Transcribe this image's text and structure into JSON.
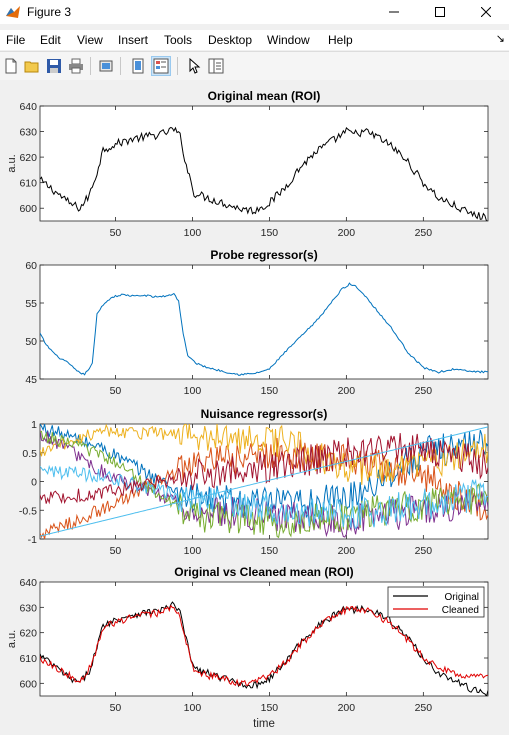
{
  "window": {
    "title": "Figure 3",
    "icon": "matlab-figure-icon",
    "controls": [
      "minimize-icon",
      "maximize-icon",
      "close-icon"
    ]
  },
  "menu": {
    "items": [
      "File",
      "Edit",
      "View",
      "Insert",
      "Tools",
      "Desktop",
      "Window",
      "Help"
    ]
  },
  "toolbar": {
    "buttons": [
      "new-figure-icon",
      "open-file-icon",
      "save-icon",
      "print-icon",
      "link-plot-icon",
      "hide-plot-tools-icon",
      "show-plot-tools-icon",
      "edit-plot-icon",
      "open-property-inspector-icon"
    ]
  },
  "chart_data": [
    {
      "type": "line",
      "title": "Original mean (ROI)",
      "ylabel": "a.u.",
      "xlabel": "",
      "xlim": [
        1,
        292
      ],
      "ylim": [
        595,
        640
      ],
      "yticks": [
        600,
        610,
        620,
        630,
        640
      ],
      "xticks": [
        50,
        100,
        150,
        200,
        250
      ],
      "series": [
        {
          "color": "#000000",
          "anchors": [
            [
              1,
              611
            ],
            [
              10,
              607
            ],
            [
              20,
              602
            ],
            [
              27,
              600
            ],
            [
              33,
              605
            ],
            [
              38,
              614
            ],
            [
              42,
              623
            ],
            [
              50,
              625
            ],
            [
              60,
              627
            ],
            [
              70,
              628
            ],
            [
              80,
              629
            ],
            [
              88,
              631
            ],
            [
              92,
              628
            ],
            [
              96,
              617
            ],
            [
              101,
              606
            ],
            [
              110,
              604
            ],
            [
              120,
              602
            ],
            [
              130,
              600
            ],
            [
              140,
              599
            ],
            [
              150,
              602
            ],
            [
              160,
              608
            ],
            [
              170,
              616
            ],
            [
              180,
              622
            ],
            [
              190,
              626
            ],
            [
              200,
              630
            ],
            [
              205,
              629
            ],
            [
              212,
              630
            ],
            [
              220,
              628
            ],
            [
              230,
              624
            ],
            [
              240,
              618
            ],
            [
              250,
              610
            ],
            [
              260,
              604
            ],
            [
              270,
              601
            ],
            [
              280,
              598
            ],
            [
              292,
              596
            ]
          ]
        }
      ]
    },
    {
      "type": "line",
      "title": "Probe regressor(s)",
      "ylabel": "",
      "xlabel": "",
      "xlim": [
        1,
        292
      ],
      "ylim": [
        45,
        60
      ],
      "yticks": [
        45,
        50,
        55,
        60
      ],
      "xticks": [
        50,
        100,
        150,
        200,
        250
      ],
      "series": [
        {
          "color": "#0072bd",
          "anchors": [
            [
              1,
              51
            ],
            [
              5,
              49.5
            ],
            [
              12,
              48
            ],
            [
              20,
              47
            ],
            [
              25,
              46
            ],
            [
              30,
              45.6
            ],
            [
              35,
              47
            ],
            [
              38,
              53.5
            ],
            [
              42,
              54.8
            ],
            [
              48,
              55.8
            ],
            [
              55,
              56.1
            ],
            [
              62,
              55.9
            ],
            [
              70,
              56
            ],
            [
              75,
              55.8
            ],
            [
              82,
              55.9
            ],
            [
              88,
              56.2
            ],
            [
              91,
              55.3
            ],
            [
              94,
              51
            ],
            [
              97,
              48
            ],
            [
              103,
              47
            ],
            [
              110,
              46.5
            ],
            [
              120,
              46
            ],
            [
              130,
              45.6
            ],
            [
              140,
              45.7
            ],
            [
              150,
              46.3
            ],
            [
              160,
              48.5
            ],
            [
              170,
              50.5
            ],
            [
              180,
              52.5
            ],
            [
              190,
              55
            ],
            [
              197,
              56.8
            ],
            [
              202,
              57.5
            ],
            [
              206,
              57.2
            ],
            [
              212,
              56
            ],
            [
              220,
              54
            ],
            [
              230,
              51.5
            ],
            [
              240,
              48.5
            ],
            [
              250,
              46.5
            ],
            [
              260,
              45.9
            ],
            [
              270,
              46.3
            ],
            [
              280,
              46
            ],
            [
              292,
              45.9
            ]
          ]
        }
      ]
    },
    {
      "type": "line",
      "title": "Nuisance regressor(s)",
      "ylabel": "",
      "xlabel": "",
      "xlim": [
        1,
        292
      ],
      "ylim": [
        -1,
        1
      ],
      "yticks": [
        -1,
        -0.5,
        0,
        0.5,
        1
      ],
      "xticks": [
        50,
        100,
        150,
        200,
        250
      ],
      "series": [
        {
          "color": "#0072bd",
          "anchors": [
            [
              1,
              0.95
            ],
            [
              40,
              0.6
            ],
            [
              100,
              -0.3
            ],
            [
              160,
              -0.4
            ],
            [
              200,
              -0.3
            ],
            [
              250,
              0.5
            ],
            [
              292,
              0.7
            ]
          ]
        },
        {
          "color": "#d95319",
          "anchors": [
            [
              1,
              -0.95
            ],
            [
              40,
              -0.5
            ],
            [
              100,
              0.3
            ],
            [
              160,
              0.5
            ],
            [
              200,
              0.4
            ],
            [
              250,
              0.1
            ],
            [
              292,
              -0.5
            ]
          ]
        },
        {
          "color": "#edb120",
          "anchors": [
            [
              1,
              0.5
            ],
            [
              40,
              0.9
            ],
            [
              100,
              0.8
            ],
            [
              160,
              0.7
            ],
            [
              200,
              0.2
            ],
            [
              250,
              0.3
            ],
            [
              292,
              0.6
            ]
          ]
        },
        {
          "color": "#7e2f8e",
          "anchors": [
            [
              1,
              0.85
            ],
            [
              40,
              0.2
            ],
            [
              100,
              -0.5
            ],
            [
              160,
              -0.6
            ],
            [
              200,
              -0.7
            ],
            [
              250,
              -0.5
            ],
            [
              292,
              -0.4
            ]
          ]
        },
        {
          "color": "#77ac30",
          "anchors": [
            [
              1,
              0.8
            ],
            [
              40,
              0.5
            ],
            [
              100,
              -0.6
            ],
            [
              160,
              -0.7
            ],
            [
              200,
              -0.6
            ],
            [
              250,
              -0.4
            ],
            [
              292,
              -0.3
            ]
          ]
        },
        {
          "color": "#4dbeee",
          "anchors": [
            [
              1,
              0.2
            ],
            [
              40,
              0.1
            ],
            [
              100,
              -0.3
            ],
            [
              160,
              -0.5
            ],
            [
              200,
              -0.6
            ],
            [
              250,
              -0.4
            ],
            [
              292,
              -0.2
            ]
          ]
        },
        {
          "color": "#a2142f",
          "anchors": [
            [
              1,
              -0.3
            ],
            [
              40,
              -0.2
            ],
            [
              100,
              0.1
            ],
            [
              160,
              0.3
            ],
            [
              200,
              0.5
            ],
            [
              250,
              0.6
            ],
            [
              292,
              0.3
            ]
          ]
        },
        {
          "color": "#4dbeee",
          "anchors": [
            [
              1,
              -0.95
            ],
            [
              292,
              0.95
            ]
          ]
        }
      ]
    },
    {
      "type": "line",
      "title": "Original vs Cleaned mean (ROI)",
      "ylabel": "a.u.",
      "xlabel": "time",
      "xlim": [
        1,
        292
      ],
      "ylim": [
        595,
        640
      ],
      "yticks": [
        600,
        610,
        620,
        630,
        640
      ],
      "xticks": [
        50,
        100,
        150,
        200,
        250
      ],
      "legend": "top-right",
      "series": [
        {
          "name": "Original",
          "color": "#000000",
          "anchors": [
            [
              1,
              611
            ],
            [
              10,
              607
            ],
            [
              20,
              602
            ],
            [
              27,
              600
            ],
            [
              33,
              605
            ],
            [
              38,
              614
            ],
            [
              42,
              623
            ],
            [
              50,
              625
            ],
            [
              60,
              627
            ],
            [
              70,
              628
            ],
            [
              80,
              629
            ],
            [
              88,
              631
            ],
            [
              92,
              628
            ],
            [
              96,
              617
            ],
            [
              101,
              606
            ],
            [
              110,
              604
            ],
            [
              120,
              602
            ],
            [
              130,
              600
            ],
            [
              140,
              599
            ],
            [
              150,
              602
            ],
            [
              160,
              608
            ],
            [
              170,
              616
            ],
            [
              180,
              622
            ],
            [
              190,
              626
            ],
            [
              200,
              630
            ],
            [
              205,
              629
            ],
            [
              212,
              630
            ],
            [
              220,
              628
            ],
            [
              230,
              624
            ],
            [
              240,
              618
            ],
            [
              250,
              610
            ],
            [
              260,
              604
            ],
            [
              270,
              601
            ],
            [
              280,
              598
            ],
            [
              292,
              596
            ]
          ]
        },
        {
          "name": "Cleaned",
          "color": "#e00000",
          "anchors": [
            [
              1,
              610
            ],
            [
              10,
              607
            ],
            [
              20,
              603
            ],
            [
              27,
              601
            ],
            [
              33,
              606
            ],
            [
              38,
              614
            ],
            [
              42,
              622
            ],
            [
              50,
              624
            ],
            [
              60,
              626
            ],
            [
              70,
              627
            ],
            [
              80,
              628
            ],
            [
              88,
              630
            ],
            [
              92,
              627
            ],
            [
              96,
              616
            ],
            [
              101,
              605
            ],
            [
              110,
              603
            ],
            [
              120,
              602
            ],
            [
              130,
              600
            ],
            [
              140,
              600
            ],
            [
              150,
              603
            ],
            [
              160,
              608
            ],
            [
              170,
              615
            ],
            [
              180,
              621
            ],
            [
              190,
              626
            ],
            [
              200,
              629
            ],
            [
              205,
              629
            ],
            [
              212,
              629
            ],
            [
              220,
              627
            ],
            [
              230,
              623
            ],
            [
              240,
              617
            ],
            [
              250,
              610
            ],
            [
              260,
              606
            ],
            [
              270,
              604
            ],
            [
              280,
              603
            ],
            [
              292,
              602
            ]
          ]
        }
      ]
    }
  ]
}
